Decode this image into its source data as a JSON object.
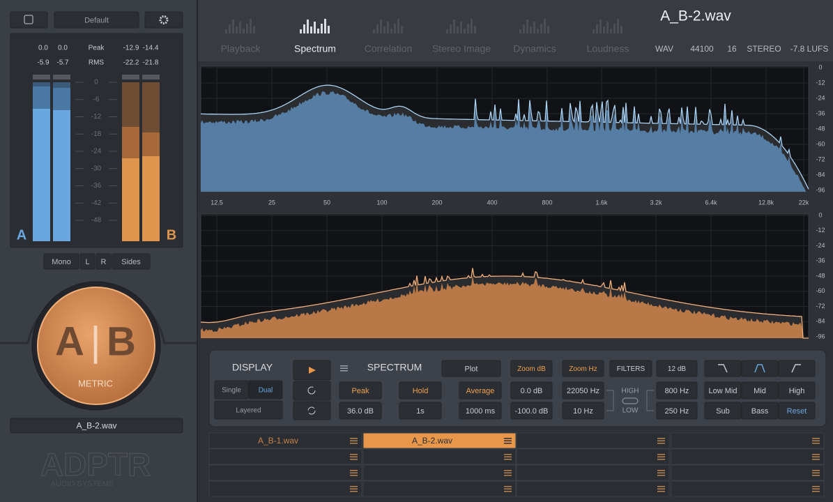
{
  "left_panel": {
    "preset": "Default",
    "meter_readout": {
      "a_peak_l": "0.0",
      "a_peak_r": "0.0",
      "peak_label": "Peak",
      "b_peak_l": "-12.9",
      "b_peak_r": "-14.4",
      "a_rms_l": "-5.9",
      "a_rms_r": "-5.7",
      "rms_label": "RMS",
      "b_rms_l": "-22.2",
      "b_rms_r": "-21.8"
    },
    "meter_scale": [
      "0",
      "-6",
      "-12",
      "-18",
      "-24",
      "-30",
      "-36",
      "-42",
      "-48"
    ],
    "channel_a": "A",
    "channel_b": "B",
    "monitor_buttons": [
      "Mono",
      "L",
      "R",
      "Sides"
    ],
    "knob": {
      "a": "A",
      "divider": "|",
      "b": "B",
      "label": "METRIC"
    },
    "current_file": "A_B-2.wav",
    "logo": {
      "name": "ADPTR",
      "tagline": "AUDIO SYSTEMS"
    }
  },
  "tabs": [
    "Playback",
    "Spectrum",
    "Correlation",
    "Stereo Image",
    "Dynamics",
    "Loudness"
  ],
  "file_info": {
    "name": "A_B-2.wav",
    "format": "WAV",
    "sample_rate": "44100",
    "bit_depth": "16",
    "channels": "STEREO",
    "loudness": "-7.8 LUFS"
  },
  "spectrum": {
    "db_labels": [
      "0",
      "-12",
      "-24",
      "-36",
      "-48",
      "-60",
      "-72",
      "-84",
      "-96"
    ],
    "freq_labels": [
      "12.5",
      "25",
      "50",
      "100",
      "200",
      "400",
      "800",
      "1.6k",
      "3.2k",
      "6.4k",
      "12.8k",
      "22k"
    ]
  },
  "controls": {
    "display": {
      "title": "DISPLAY",
      "single": "Single",
      "dual": "Dual",
      "layered": "Layered"
    },
    "spectrum_title": "SPECTRUM",
    "mode": "Plot",
    "zoom_db": "Zoom dB",
    "zoom_hz": "Zoom Hz",
    "filters": "FILTERS",
    "slope": "12 dB",
    "peak": "Peak",
    "peak_value": "36.0 dB",
    "hold": "Hold",
    "hold_value": "1s",
    "average": "Average",
    "average_value": "1000 ms",
    "db_top": "0.0 dB",
    "db_bottom": "-100.0 dB",
    "hz_top": "22050 Hz",
    "hz_bottom": "10 Hz",
    "high": "HIGH",
    "low": "LOW",
    "high_freq": "800 Hz",
    "low_freq": "250 Hz",
    "bands": [
      "Low Mid",
      "Mid",
      "High",
      "Sub",
      "Bass",
      "Reset"
    ]
  },
  "slots": [
    "A_B-1.wav",
    "A_B-2.wav"
  ]
}
